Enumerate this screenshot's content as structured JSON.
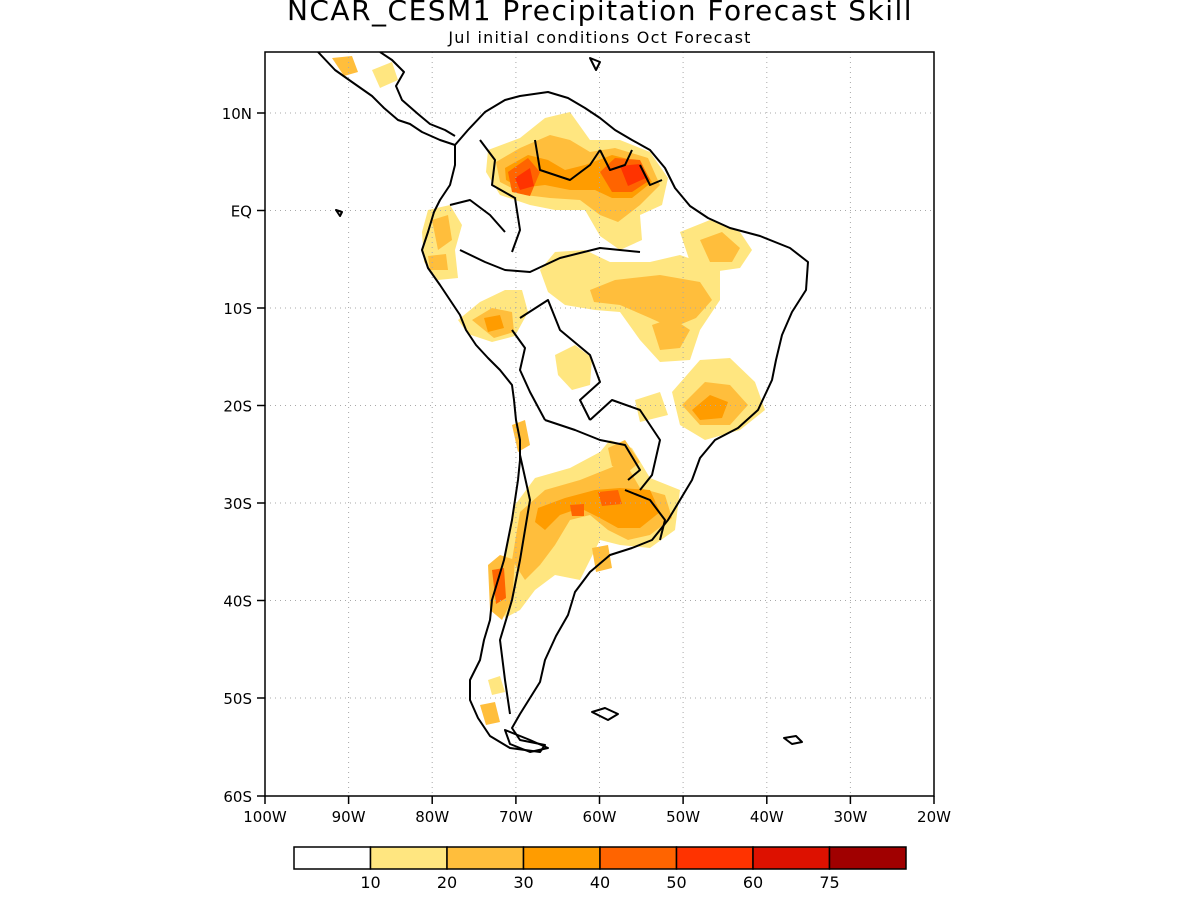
{
  "title": "NCAR_CESM1 Precipitation Forecast Skill",
  "subtitle": "Jul initial conditions  Oct Forecast",
  "map": {
    "lon_range": [
      -100,
      -20
    ],
    "lat_range": [
      -60,
      15
    ],
    "lon_ticks": [
      "100W",
      "90W",
      "80W",
      "70W",
      "60W",
      "50W",
      "40W",
      "30W",
      "20W"
    ],
    "lat_ticks": [
      "10N",
      "EQ",
      "10S",
      "20S",
      "30S",
      "40S",
      "50S",
      "60S"
    ],
    "grid": "dotted"
  },
  "legend": {
    "levels": [
      "10",
      "20",
      "30",
      "40",
      "50",
      "60",
      "75"
    ],
    "colors": [
      "#ffffff",
      "#ffe680",
      "#ffbe3c",
      "#ff9c00",
      "#ff6400",
      "#ff3300",
      "#dd1100",
      "#a00000"
    ]
  }
}
